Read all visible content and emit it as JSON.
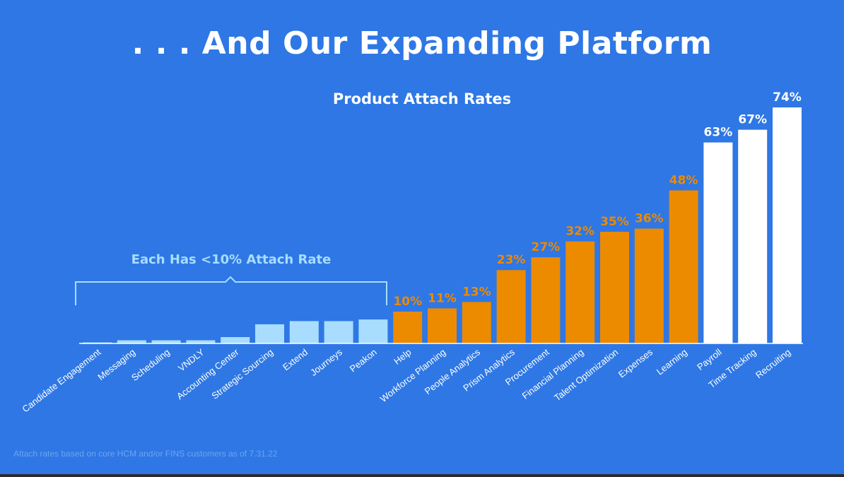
{
  "slide": {
    "title": ". . . And Our Expanding Platform",
    "footnote": "Attach rates based on core HCM and/or FINS customers as of 7.31.22"
  },
  "chart_data": {
    "type": "bar",
    "title": "Product Attach Rates",
    "annotation": "Each Has <10% Attach Rate",
    "categories": [
      "Candidate Engagement",
      "Messaging",
      "Scheduling",
      "VNDLY",
      "Accounting Center",
      "Strategic Sourcing",
      "Extend",
      "Journeys",
      "Peakon",
      "Help",
      "Workforce Planning",
      "People Analytics",
      "Prism Analytics",
      "Procurement",
      "Financial Planning",
      "Talent Optimization",
      "Expenses",
      "Learning",
      "Payroll",
      "Time Tracking",
      "Recruiting"
    ],
    "values": [
      0.3,
      1,
      1,
      1,
      2,
      6,
      7,
      7,
      7.5,
      10,
      11,
      13,
      23,
      27,
      32,
      35,
      36,
      48,
      63,
      67,
      74
    ],
    "data_labels": [
      "",
      "",
      "",
      "",
      "",
      "",
      "",
      "",
      "",
      "10%",
      "11%",
      "13%",
      "23%",
      "27%",
      "32%",
      "35%",
      "36%",
      "48%",
      "63%",
      "67%",
      "74%"
    ],
    "groups": [
      "light",
      "light",
      "light",
      "light",
      "light",
      "light",
      "light",
      "light",
      "light",
      "orange",
      "orange",
      "orange",
      "orange",
      "orange",
      "orange",
      "orange",
      "orange",
      "orange",
      "white",
      "white",
      "white"
    ],
    "colors": {
      "light": "#a8ddff",
      "orange": "#ec8a00",
      "white": "#ffffff",
      "background": "#2e77e5"
    },
    "ylim": [
      0,
      74
    ],
    "xlabel": "",
    "ylabel": "",
    "grid": false
  }
}
